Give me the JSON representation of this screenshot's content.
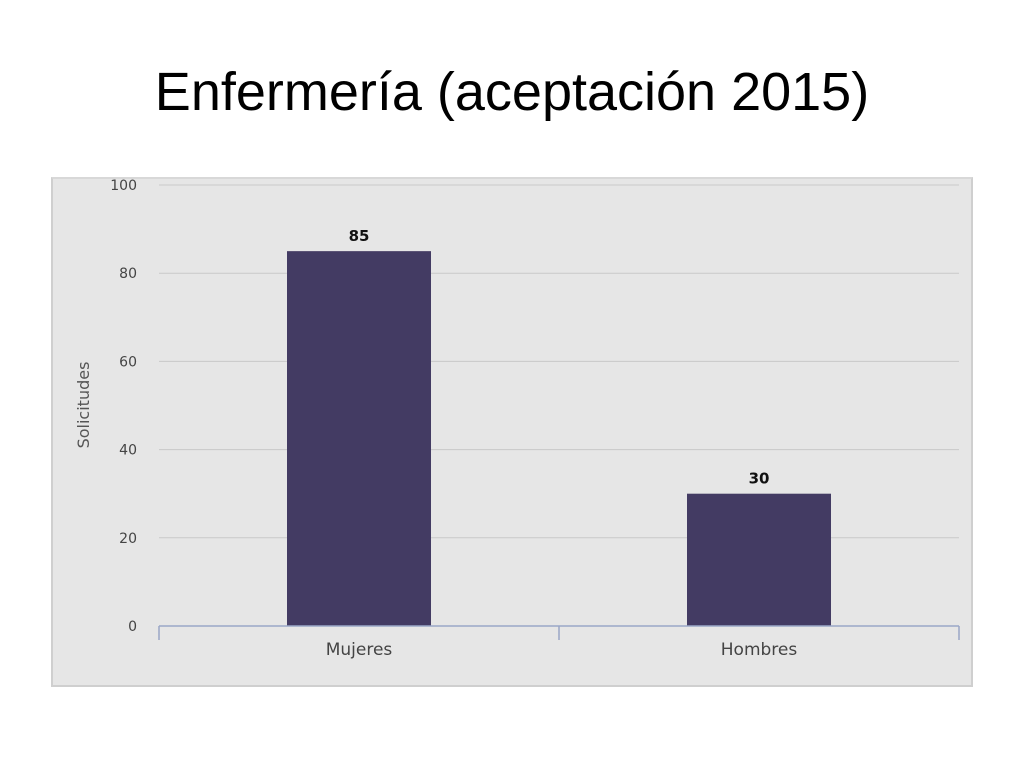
{
  "slide": {
    "title": "Enfermería (aceptación 2015)"
  },
  "chart_data": {
    "type": "bar",
    "categories": [
      "Mujeres",
      "Hombres"
    ],
    "values": [
      85,
      30
    ],
    "data_labels": [
      "85",
      "30"
    ],
    "ylabel": "Solicitudes",
    "xlabel": "",
    "ylim": [
      0,
      100
    ],
    "yticks": [
      0,
      20,
      40,
      60,
      80,
      100
    ],
    "ytick_labels": [
      "0",
      "20",
      "40",
      "60",
      "80",
      "100"
    ],
    "grid": true,
    "legend": "none",
    "colors": {
      "bar": "#433b63",
      "plot_background": "#e6e6e6",
      "gridline": "#c9c9c9",
      "axis": "#9aa7c7"
    }
  }
}
